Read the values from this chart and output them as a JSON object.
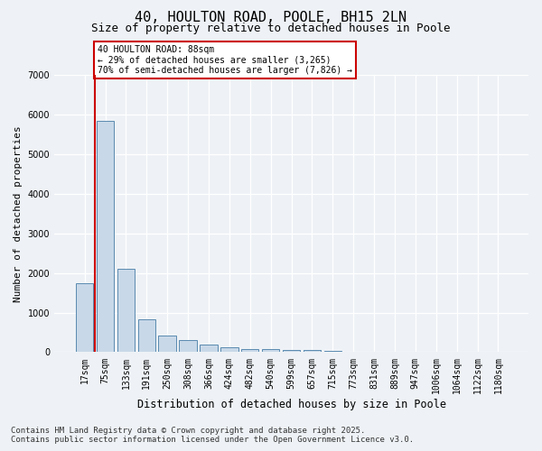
{
  "title1": "40, HOULTON ROAD, POOLE, BH15 2LN",
  "title2": "Size of property relative to detached houses in Poole",
  "xlabel": "Distribution of detached houses by size in Poole",
  "ylabel": "Number of detached properties",
  "categories": [
    "17sqm",
    "75sqm",
    "133sqm",
    "191sqm",
    "250sqm",
    "308sqm",
    "366sqm",
    "424sqm",
    "482sqm",
    "540sqm",
    "599sqm",
    "657sqm",
    "715sqm",
    "773sqm",
    "831sqm",
    "889sqm",
    "947sqm",
    "1006sqm",
    "1064sqm",
    "1122sqm",
    "1180sqm"
  ],
  "values": [
    1750,
    5850,
    2100,
    820,
    420,
    310,
    200,
    130,
    90,
    70,
    55,
    45,
    40,
    0,
    0,
    0,
    0,
    0,
    0,
    0,
    0
  ],
  "bar_color": "#c8d8e8",
  "bar_edge_color": "#5a8ab0",
  "vline_x": 0.5,
  "vline_color": "#cc0000",
  "ylim": [
    0,
    7000
  ],
  "yticks": [
    0,
    1000,
    2000,
    3000,
    4000,
    5000,
    6000,
    7000
  ],
  "annotation_title": "40 HOULTON ROAD: 88sqm",
  "annotation_line1": "← 29% of detached houses are smaller (3,265)",
  "annotation_line2": "70% of semi-detached houses are larger (7,826) →",
  "annotation_box_color": "#ffffff",
  "annotation_box_edge": "#cc0000",
  "footer1": "Contains HM Land Registry data © Crown copyright and database right 2025.",
  "footer2": "Contains public sector information licensed under the Open Government Licence v3.0.",
  "background_color": "#eef2f6",
  "grid_color": "#ffffff",
  "title1_fontsize": 11,
  "title2_fontsize": 9,
  "xlabel_fontsize": 8.5,
  "ylabel_fontsize": 8,
  "tick_fontsize": 7,
  "footer_fontsize": 6.5
}
